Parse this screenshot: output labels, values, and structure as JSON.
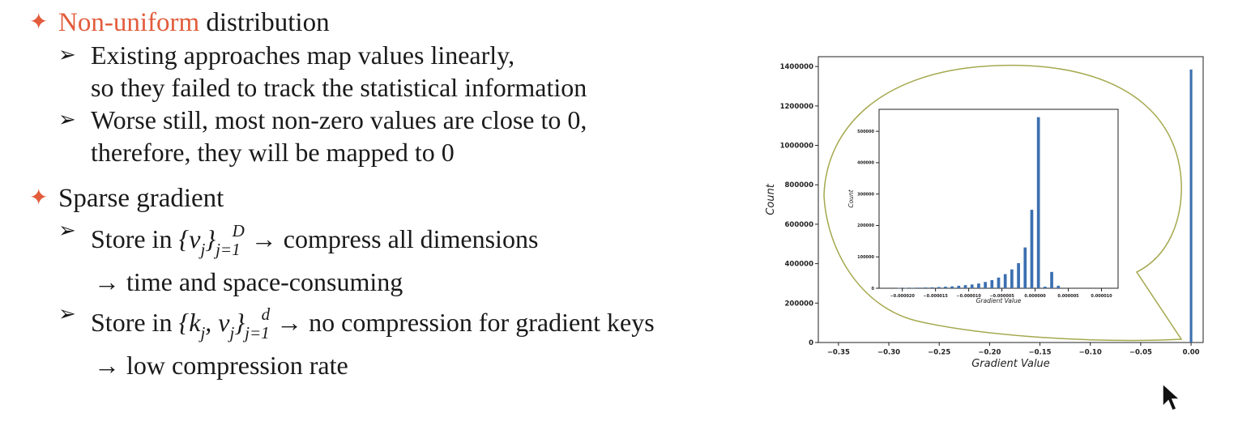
{
  "slide": {
    "b1_accent": "Non-uniform",
    "b1_rest": " distribution",
    "b1_sub1_line1": "Existing approaches map values linearly,",
    "b1_sub1_line2": "so they failed to track the statistical information",
    "b1_sub2_line1": "Worse still, most non-zero values are close to 0,",
    "b1_sub2_line2": "therefore, they will be mapped to 0",
    "b2_title": "Sparse gradient",
    "b2_sub1_prefix": "Store in ",
    "b2_sub1_set": "{v",
    "b2_sub1_set_sub": "j",
    "b2_sub1_set_close": "}",
    "b2_sub1_lim_lower": "j=1",
    "b2_sub1_lim_upper": "D",
    "b2_sub1_result": " → compress all dimensions",
    "b2_sub1_cont": "→ time and space-consuming",
    "b2_sub2_prefix": "Store in ",
    "b2_sub2_set": "{k",
    "b2_sub2_set_sub1": "j",
    "b2_sub2_set_mid": ", v",
    "b2_sub2_set_sub2": "j",
    "b2_sub2_set_close": "}",
    "b2_sub2_lim_lower": "j=1",
    "b2_sub2_lim_upper": "d",
    "b2_sub2_result": " → no compression for gradient keys",
    "b2_sub2_cont": "→ low compression rate"
  },
  "icons": {
    "bullet": "four-point-star-icon",
    "sub_bullet": "arrowhead-icon",
    "cursor": "mouse-pointer-icon"
  },
  "colors": {
    "accent": "#e25c3c",
    "bar": "#3b6fb0",
    "callout": "#a5a84d"
  },
  "chart_data": [
    {
      "type": "bar",
      "xlabel": "Gradient Value",
      "ylabel": "Count",
      "xlim": [
        -0.37,
        0.012
      ],
      "ylim": [
        0,
        1450000
      ],
      "xticks": [
        -0.35,
        -0.3,
        -0.25,
        -0.2,
        -0.15,
        -0.1,
        -0.05,
        0.0
      ],
      "xtick_labels": [
        "−0.35",
        "−0.30",
        "−0.25",
        "−0.20",
        "−0.15",
        "−0.10",
        "−0.05",
        "0.00"
      ],
      "yticks": [
        0,
        200000,
        400000,
        600000,
        800000,
        1000000,
        1200000,
        1400000
      ],
      "ytick_labels": [
        "0",
        "200000",
        "400000",
        "600000",
        "800000",
        "1000000",
        "1200000",
        "1400000"
      ],
      "bar_width": 0.0025,
      "x": [
        0.0
      ],
      "values": [
        1385000
      ],
      "grid": false
    },
    {
      "type": "bar",
      "xlabel": "Gradient Value",
      "ylabel": "Count",
      "xlim": [
        -2.35e-05,
        1.25e-05
      ],
      "ylim": [
        0,
        570000
      ],
      "xticks": [
        -2e-05,
        -1.5e-05,
        -1e-05,
        -5e-06,
        0.0,
        5e-06,
        1e-05
      ],
      "xtick_labels": [
        "−0.000020",
        "−0.000015",
        "−0.000010",
        "−0.000005",
        "0.000000",
        "0.000005",
        "0.000010"
      ],
      "yticks": [
        0,
        100000,
        200000,
        300000,
        400000,
        500000
      ],
      "ytick_labels": [
        "0",
        "100000",
        "200000",
        "300000",
        "400000",
        "500000"
      ],
      "bar_width": 4.5e-07,
      "x": [
        -2.05e-05,
        -1.95e-05,
        -1.85e-05,
        -1.75e-05,
        -1.65e-05,
        -1.55e-05,
        -1.45e-05,
        -1.35e-05,
        -1.25e-05,
        -1.15e-05,
        -1.05e-05,
        -9.5e-06,
        -8.5e-06,
        -7.5e-06,
        -6.5e-06,
        -5.5e-06,
        -4.5e-06,
        -3.5e-06,
        -2.5e-06,
        -1.5e-06,
        -5e-07,
        5e-07,
        1.5e-06,
        2.5e-06,
        3.5e-06
      ],
      "values": [
        1000,
        1200,
        1500,
        2000,
        2500,
        3000,
        4000,
        5000,
        6000,
        8000,
        10000,
        12000,
        15000,
        20000,
        26000,
        34000,
        45000,
        60000,
        80000,
        130000,
        250000,
        545000,
        5000,
        52000,
        8000
      ],
      "grid": false
    }
  ]
}
